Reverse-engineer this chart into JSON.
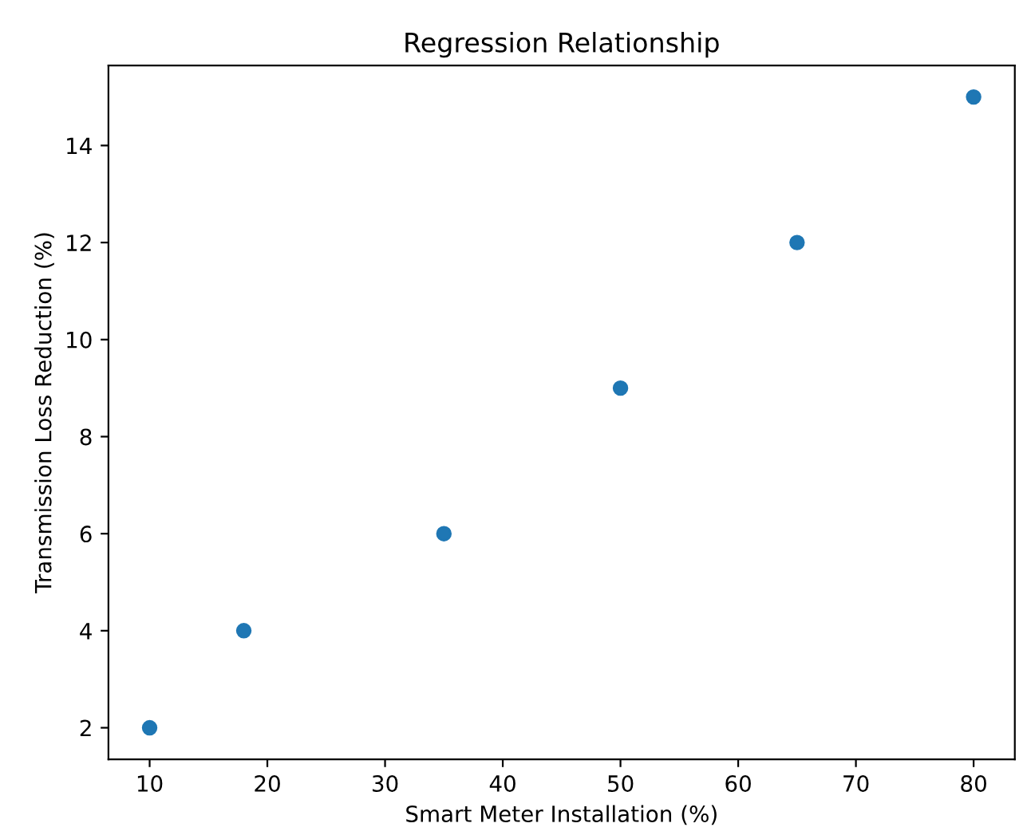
{
  "chart_data": {
    "type": "scatter",
    "title": "Regression Relationship",
    "xlabel": "Smart Meter Installation (%)",
    "ylabel": "Transmission Loss Reduction (%)",
    "x": [
      10,
      18,
      35,
      50,
      65,
      80
    ],
    "series": [
      {
        "color": "#1f77b4",
        "values": [
          2,
          4,
          6,
          9,
          12,
          15
        ]
      }
    ],
    "xlim": [
      6.5,
      83.5
    ],
    "ylim": [
      1.35,
      15.65
    ],
    "xticks": [
      10,
      20,
      30,
      40,
      50,
      60,
      70,
      80
    ],
    "yticks": [
      2,
      4,
      6,
      8,
      10,
      12,
      14
    ],
    "marker": "circle",
    "grid": false,
    "legend": false
  }
}
